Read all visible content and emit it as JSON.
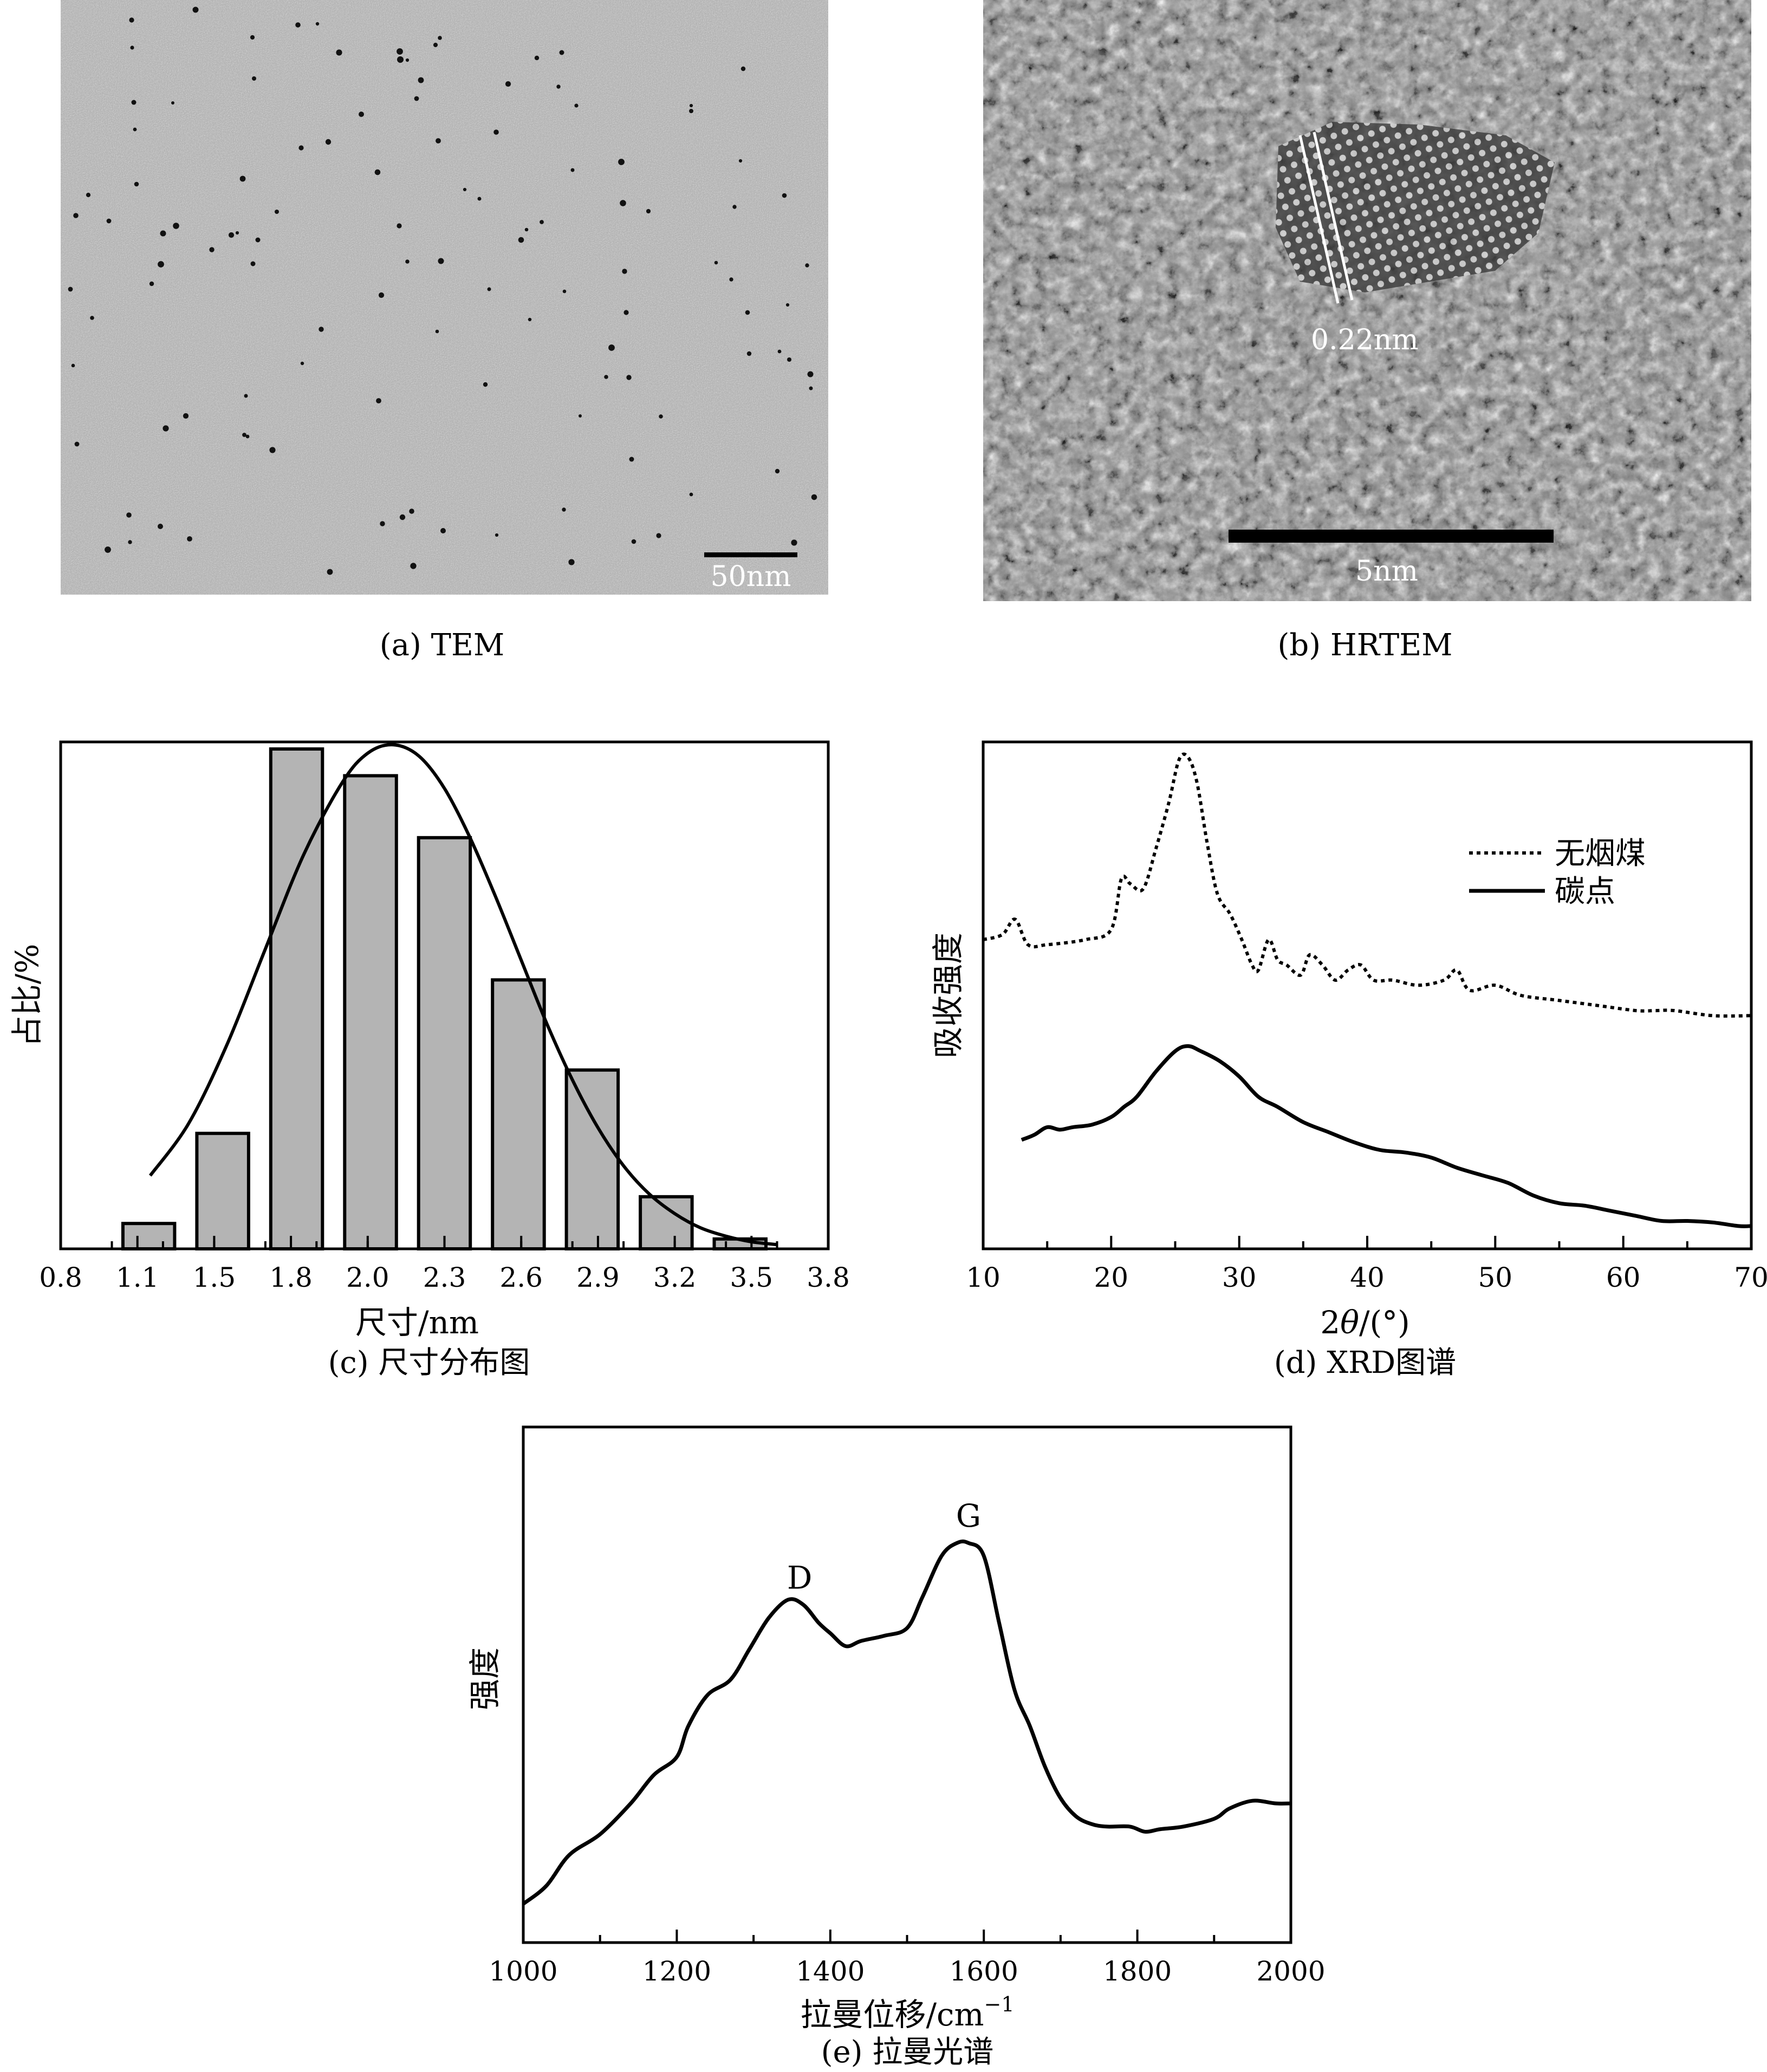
{
  "panels": {
    "a": {
      "caption": "(a) TEM",
      "scalebar_label": "50nm",
      "colors": {
        "background": "#a9a9a9",
        "particle": "#111111"
      }
    },
    "b": {
      "caption": "(b) HRTEM",
      "lattice_label": "0.22nm",
      "scalebar_label": "5nm",
      "colors": {
        "background": "#8a8a8a"
      }
    }
  },
  "chart_data": [
    {
      "id": "c",
      "type": "bar",
      "caption": "(c) 尺寸分布图",
      "xlabel": "尺寸/nm",
      "ylabel": "占比/%",
      "xlim": [
        0.8,
        3.8
      ],
      "ylim": [
        0,
        36
      ],
      "ticks": [
        "0.8",
        "1.1",
        "1.5",
        "1.8",
        "2.0",
        "2.3",
        "2.6",
        "2.9",
        "3.2",
        "3.5",
        "3.8"
      ],
      "categories": [
        "1.1",
        "1.5",
        "1.8",
        "2.0",
        "2.3",
        "2.6",
        "2.9",
        "3.2",
        "3.5"
      ],
      "values": [
        1.8,
        8.2,
        35.5,
        33.6,
        29.2,
        19.1,
        12.7,
        3.7,
        0.7
      ],
      "fit_curve": {
        "type": "gaussian",
        "x": [
          1.15,
          1.3,
          1.45,
          1.6,
          1.75,
          1.9,
          2.0,
          2.1,
          2.2,
          2.3,
          2.4,
          2.5,
          2.6,
          2.7,
          2.8,
          2.9,
          3.0,
          3.1,
          3.2,
          3.3,
          3.4,
          3.5,
          3.6
        ],
        "y": [
          5.2,
          8.9,
          14.5,
          21.3,
          28.0,
          33.1,
          35.2,
          35.8,
          35.0,
          32.7,
          29.2,
          25.0,
          20.5,
          16.0,
          12.0,
          8.6,
          5.9,
          3.9,
          2.5,
          1.5,
          0.9,
          0.5,
          0.3
        ]
      },
      "colors": {
        "bar": "#b4b4b4"
      }
    },
    {
      "id": "d",
      "type": "line",
      "caption": "(d) XRD图谱",
      "xlabel": "2θ/(°)",
      "ylabel": "吸收强度",
      "xlim": [
        10,
        70
      ],
      "ylim": [
        0,
        1
      ],
      "xticks": [
        "10",
        "20",
        "30",
        "40",
        "50",
        "60",
        "70"
      ],
      "legend_position": "top-right",
      "series": [
        {
          "name": "无烟煤",
          "style": "dotted",
          "x": [
            10,
            11.5,
            12.5,
            13.5,
            15,
            18,
            20,
            20.8,
            21.5,
            22.5,
            23.5,
            24.5,
            25.3,
            26,
            26.7,
            27.5,
            28.3,
            29.3,
            30.2,
            31,
            31.5,
            32.3,
            33,
            33.7,
            34.8,
            35.5,
            36.5,
            37.5,
            38.5,
            39.5,
            40.5,
            42,
            44,
            46,
            47,
            48,
            50,
            52,
            55,
            58,
            61,
            62.5,
            64,
            67,
            70
          ],
          "y": [
            0.61,
            0.62,
            0.65,
            0.6,
            0.6,
            0.61,
            0.63,
            0.73,
            0.72,
            0.71,
            0.79,
            0.88,
            0.965,
            0.97,
            0.92,
            0.8,
            0.7,
            0.66,
            0.61,
            0.56,
            0.55,
            0.61,
            0.57,
            0.56,
            0.54,
            0.58,
            0.56,
            0.53,
            0.55,
            0.56,
            0.53,
            0.53,
            0.52,
            0.53,
            0.55,
            0.51,
            0.52,
            0.5,
            0.49,
            0.48,
            0.47,
            0.47,
            0.47,
            0.46,
            0.46
          ]
        },
        {
          "name": "碳点",
          "style": "solid",
          "x": [
            13,
            14,
            15,
            16,
            17,
            18.5,
            20,
            21,
            22,
            23.5,
            25,
            26,
            27,
            28.5,
            30,
            31.5,
            33,
            35,
            37,
            39,
            41,
            43,
            45,
            47,
            49,
            51,
            53,
            55,
            57,
            59,
            61,
            63,
            65,
            67,
            69,
            70
          ],
          "y": [
            0.215,
            0.225,
            0.24,
            0.235,
            0.24,
            0.245,
            0.26,
            0.28,
            0.3,
            0.35,
            0.39,
            0.4,
            0.39,
            0.37,
            0.34,
            0.3,
            0.28,
            0.25,
            0.23,
            0.21,
            0.195,
            0.19,
            0.18,
            0.16,
            0.145,
            0.13,
            0.105,
            0.09,
            0.085,
            0.075,
            0.065,
            0.055,
            0.055,
            0.052,
            0.045,
            0.045
          ]
        }
      ]
    },
    {
      "id": "e",
      "type": "line",
      "caption": "(e) 拉曼光谱",
      "xlabel": "拉曼位移/cm",
      "xlabel_sup": "−1",
      "ylabel": "强度",
      "xlim": [
        1000,
        2000
      ],
      "ylim": [
        0,
        1
      ],
      "xticks": [
        "1000",
        "1200",
        "1400",
        "1600",
        "1800",
        "2000"
      ],
      "peaks": [
        {
          "label": "D",
          "x": 1360
        },
        {
          "label": "G",
          "x": 1580
        }
      ],
      "series": [
        {
          "style": "solid",
          "x": [
            1000,
            1030,
            1060,
            1100,
            1140,
            1170,
            1200,
            1215,
            1240,
            1270,
            1295,
            1320,
            1345,
            1365,
            1385,
            1400,
            1420,
            1440,
            1470,
            1500,
            1520,
            1545,
            1565,
            1580,
            1600,
            1620,
            1640,
            1660,
            1680,
            1700,
            1720,
            1740,
            1760,
            1790,
            1810,
            1830,
            1860,
            1900,
            1920,
            1950,
            1980,
            2000
          ],
          "y": [
            0.075,
            0.11,
            0.17,
            0.21,
            0.27,
            0.325,
            0.36,
            0.42,
            0.48,
            0.51,
            0.57,
            0.63,
            0.665,
            0.655,
            0.62,
            0.6,
            0.575,
            0.585,
            0.595,
            0.61,
            0.67,
            0.75,
            0.775,
            0.775,
            0.75,
            0.62,
            0.49,
            0.42,
            0.34,
            0.28,
            0.245,
            0.23,
            0.225,
            0.225,
            0.215,
            0.22,
            0.225,
            0.24,
            0.26,
            0.275,
            0.27,
            0.27
          ]
        }
      ]
    }
  ]
}
